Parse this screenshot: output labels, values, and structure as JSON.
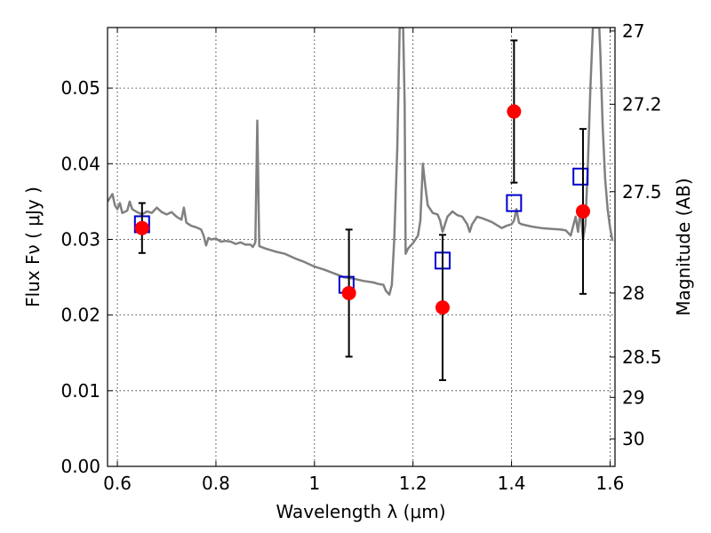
{
  "chart_data": {
    "type": "scatter",
    "title": "",
    "xlabel": "Wavelength  λ (μm)",
    "ylabel": "Flux  Fν  ( μJy )",
    "ylabel_right": "Magnitude (AB)",
    "xlim": [
      0.58,
      1.61
    ],
    "ylim": [
      0.0,
      0.058
    ],
    "x_ticks": [
      0.6,
      0.8,
      1.0,
      1.2,
      1.4,
      1.6
    ],
    "x_tick_labels": [
      "0.6",
      "0.8",
      "1",
      "1.2",
      "1.4",
      "1.6"
    ],
    "y_ticks": [
      0.0,
      0.01,
      0.02,
      0.03,
      0.04,
      0.05
    ],
    "y_tick_labels": [
      "0.00",
      "0.01",
      "0.02",
      "0.03",
      "0.04",
      "0.05"
    ],
    "right_ticks": [
      {
        "label": "27",
        "value": 27.0
      },
      {
        "label": "27.2",
        "value": 27.2
      },
      {
        "label": "27.5",
        "value": 27.5
      },
      {
        "label": "28",
        "value": 28.0
      },
      {
        "label": "28.5",
        "value": 28.5
      },
      {
        "label": "29",
        "value": 29.0
      },
      {
        "label": "30",
        "value": 30.0
      }
    ],
    "grid": true,
    "colors": {
      "observed": "#ff0000",
      "model_box": "#0000cc",
      "model_sed": "#808080",
      "error_bar": "#000000"
    },
    "series": [
      {
        "type": "scatter-error",
        "points": [
          {
            "x": 0.65,
            "y": 0.0315,
            "yerr": 0.0033
          },
          {
            "x": 1.07,
            "y": 0.0229,
            "yerr": 0.0084
          },
          {
            "x": 1.26,
            "y": 0.021,
            "yerr": 0.0096
          },
          {
            "x": 1.405,
            "y": 0.0469,
            "yerr": 0.0094
          },
          {
            "x": 1.545,
            "y": 0.0337,
            "yerr": 0.0109
          }
        ]
      },
      {
        "type": "scatter-box",
        "points": [
          {
            "x": 0.65,
            "y": 0.032
          },
          {
            "x": 1.065,
            "y": 0.024
          },
          {
            "x": 1.26,
            "y": 0.0272
          },
          {
            "x": 1.405,
            "y": 0.0348
          },
          {
            "x": 1.54,
            "y": 0.0383
          }
        ]
      },
      {
        "type": "line",
        "points": [
          [
            0.58,
            0.035
          ],
          [
            0.585,
            0.0355
          ],
          [
            0.59,
            0.036
          ],
          [
            0.595,
            0.0345
          ],
          [
            0.6,
            0.034
          ],
          [
            0.605,
            0.0348
          ],
          [
            0.61,
            0.0335
          ],
          [
            0.62,
            0.0338
          ],
          [
            0.625,
            0.035
          ],
          [
            0.63,
            0.034
          ],
          [
            0.64,
            0.0336
          ],
          [
            0.65,
            0.0333
          ],
          [
            0.66,
            0.0337
          ],
          [
            0.67,
            0.0335
          ],
          [
            0.68,
            0.0342
          ],
          [
            0.69,
            0.0336
          ],
          [
            0.7,
            0.0333
          ],
          [
            0.71,
            0.0336
          ],
          [
            0.72,
            0.033
          ],
          [
            0.73,
            0.0326
          ],
          [
            0.735,
            0.0342
          ],
          [
            0.74,
            0.0322
          ],
          [
            0.75,
            0.0318
          ],
          [
            0.76,
            0.0316
          ],
          [
            0.77,
            0.0313
          ],
          [
            0.775,
            0.0305
          ],
          [
            0.78,
            0.0292
          ],
          [
            0.785,
            0.0302
          ],
          [
            0.79,
            0.03
          ],
          [
            0.8,
            0.0301
          ],
          [
            0.81,
            0.0297
          ],
          [
            0.82,
            0.0298
          ],
          [
            0.83,
            0.0297
          ],
          [
            0.84,
            0.0294
          ],
          [
            0.85,
            0.0296
          ],
          [
            0.86,
            0.0293
          ],
          [
            0.87,
            0.0293
          ],
          [
            0.875,
            0.029
          ],
          [
            0.88,
            0.0296
          ],
          [
            0.884,
            0.0457
          ],
          [
            0.888,
            0.0291
          ],
          [
            0.9,
            0.0288
          ],
          [
            0.92,
            0.0284
          ],
          [
            0.94,
            0.0281
          ],
          [
            0.96,
            0.0275
          ],
          [
            0.98,
            0.027
          ],
          [
            1.0,
            0.0264
          ],
          [
            1.02,
            0.026
          ],
          [
            1.04,
            0.0255
          ],
          [
            1.06,
            0.025
          ],
          [
            1.08,
            0.0248
          ],
          [
            1.1,
            0.0245
          ],
          [
            1.12,
            0.0243
          ],
          [
            1.13,
            0.0241
          ],
          [
            1.14,
            0.024
          ],
          [
            1.145,
            0.0232
          ],
          [
            1.152,
            0.0227
          ],
          [
            1.157,
            0.024
          ],
          [
            1.162,
            0.03
          ],
          [
            1.168,
            0.042
          ],
          [
            1.173,
            0.058
          ],
          [
            1.18,
            0.058
          ],
          [
            1.183,
            0.048
          ],
          [
            1.185,
            0.0281
          ],
          [
            1.19,
            0.0288
          ],
          [
            1.2,
            0.0295
          ],
          [
            1.21,
            0.0305
          ],
          [
            1.215,
            0.0325
          ],
          [
            1.22,
            0.04
          ],
          [
            1.225,
            0.037
          ],
          [
            1.23,
            0.0345
          ],
          [
            1.24,
            0.0335
          ],
          [
            1.25,
            0.0333
          ],
          [
            1.255,
            0.0325
          ],
          [
            1.26,
            0.031
          ],
          [
            1.265,
            0.032
          ],
          [
            1.27,
            0.033
          ],
          [
            1.28,
            0.0337
          ],
          [
            1.29,
            0.0332
          ],
          [
            1.3,
            0.033
          ],
          [
            1.31,
            0.032
          ],
          [
            1.315,
            0.031
          ],
          [
            1.32,
            0.032
          ],
          [
            1.33,
            0.033
          ],
          [
            1.34,
            0.0328
          ],
          [
            1.36,
            0.0323
          ],
          [
            1.38,
            0.0315
          ],
          [
            1.39,
            0.0318
          ],
          [
            1.4,
            0.032
          ],
          [
            1.405,
            0.0325
          ],
          [
            1.41,
            0.034
          ],
          [
            1.415,
            0.0322
          ],
          [
            1.42,
            0.032
          ],
          [
            1.44,
            0.0317
          ],
          [
            1.46,
            0.0315
          ],
          [
            1.48,
            0.0314
          ],
          [
            1.5,
            0.0313
          ],
          [
            1.51,
            0.0312
          ],
          [
            1.52,
            0.0305
          ],
          [
            1.53,
            0.033
          ],
          [
            1.535,
            0.031
          ],
          [
            1.54,
            0.034
          ],
          [
            1.545,
            0.03
          ],
          [
            1.55,
            0.032
          ],
          [
            1.555,
            0.04
          ],
          [
            1.56,
            0.05
          ],
          [
            1.565,
            0.058
          ],
          [
            1.578,
            0.058
          ],
          [
            1.58,
            0.055
          ],
          [
            1.585,
            0.045
          ],
          [
            1.59,
            0.038
          ],
          [
            1.595,
            0.034
          ],
          [
            1.6,
            0.0315
          ],
          [
            1.605,
            0.0298
          ]
        ]
      }
    ]
  }
}
